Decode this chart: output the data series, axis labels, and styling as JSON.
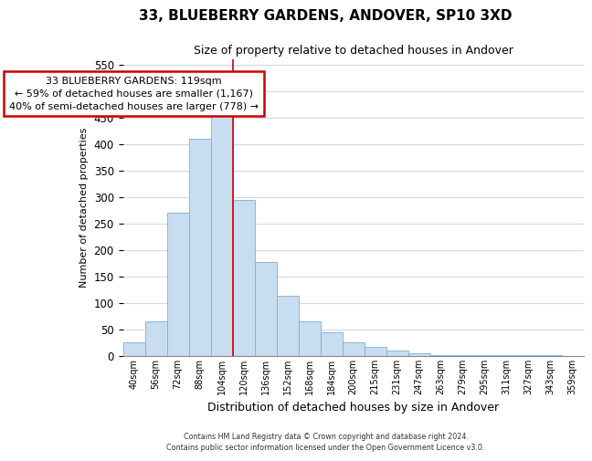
{
  "title": "33, BLUEBERRY GARDENS, ANDOVER, SP10 3XD",
  "subtitle": "Size of property relative to detached houses in Andover",
  "xlabel": "Distribution of detached houses by size in Andover",
  "ylabel": "Number of detached properties",
  "bar_labels": [
    "40sqm",
    "56sqm",
    "72sqm",
    "88sqm",
    "104sqm",
    "120sqm",
    "136sqm",
    "152sqm",
    "168sqm",
    "184sqm",
    "200sqm",
    "215sqm",
    "231sqm",
    "247sqm",
    "263sqm",
    "279sqm",
    "295sqm",
    "311sqm",
    "327sqm",
    "343sqm",
    "359sqm"
  ],
  "bar_values": [
    25,
    65,
    270,
    410,
    455,
    295,
    178,
    113,
    65,
    44,
    25,
    17,
    11,
    5,
    2,
    2,
    1,
    1,
    1,
    1,
    0
  ],
  "bar_color": "#c8ddf0",
  "bar_edge_color": "#7aafd4",
  "marker_label": "33 BLUEBERRY GARDENS: 119sqm",
  "marker_line_color": "#cc0000",
  "annotation_line1": "← 59% of detached houses are smaller (1,167)",
  "annotation_line2": "40% of semi-detached houses are larger (778) →",
  "annotation_box_color": "#cc0000",
  "ylim": [
    0,
    560
  ],
  "yticks": [
    0,
    50,
    100,
    150,
    200,
    250,
    300,
    350,
    400,
    450,
    500,
    550
  ],
  "footer_line1": "Contains HM Land Registry data © Crown copyright and database right 2024.",
  "footer_line2": "Contains public sector information licensed under the Open Government Licence v3.0.",
  "bg_color": "#ffffff",
  "plot_bg_color": "#ffffff",
  "grid_color": "#d0d8e8"
}
